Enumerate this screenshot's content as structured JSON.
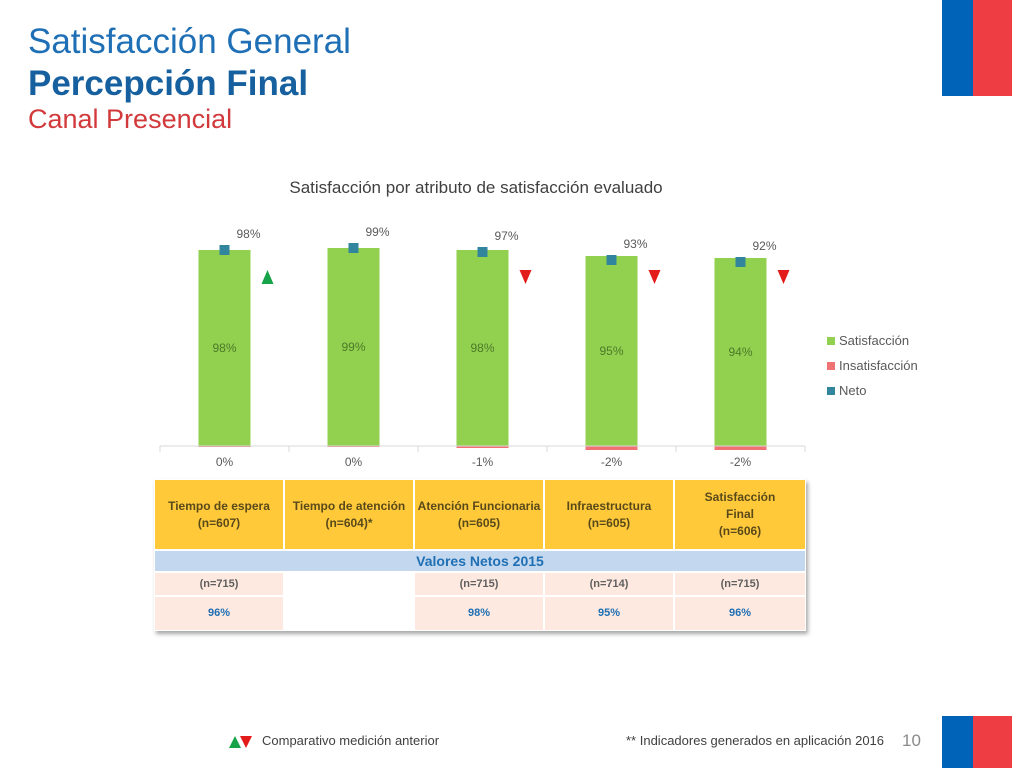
{
  "header": {
    "title": "Satisfacción General",
    "subtitle": "Percepción Final",
    "channel": "Canal Presencial"
  },
  "colors": {
    "brand_blue": "#0063b8",
    "brand_red": "#ee3e44",
    "satisfaccion": "#92d050",
    "insatisfaccion": "#f07275",
    "neto": "#31859c",
    "up": "#16a34a",
    "down": "#e31b1b"
  },
  "chart_data": {
    "type": "bar",
    "title": "Satisfacción por atributo de satisfacción evaluado",
    "categories": [
      "Tiempo de espera",
      "Tiempo de atención",
      "Atención Funcionaria",
      "Infraestructura",
      "Satisfacción Final"
    ],
    "series": [
      {
        "name": "Satisfacción",
        "values": [
          98,
          99,
          98,
          95,
          94
        ],
        "labels": [
          "98%",
          "99%",
          "98%",
          "95%",
          "94%"
        ]
      },
      {
        "name": "Insatisfacción",
        "values": [
          0,
          0,
          -1,
          -2,
          -2
        ],
        "labels": [
          "0%",
          "0%",
          "-1%",
          "-2%",
          "-2%"
        ]
      },
      {
        "name": "Neto",
        "values": [
          98,
          99,
          97,
          93,
          92
        ],
        "labels": [
          "98%",
          "99%",
          "97%",
          "93%",
          "92%"
        ]
      }
    ],
    "comparison": [
      "up",
      "none",
      "down",
      "down",
      "down"
    ],
    "ylim": [
      -2,
      100
    ],
    "legend_position": "right",
    "grid": false
  },
  "table": {
    "headers": [
      "Tiempo de espera\n(n=607)",
      "Tiempo de atención\n(n=604)*",
      "Atención Funcionaria\n(n=605)",
      "Infraestructura\n(n=605)",
      "Satisfacción\nFinal\n(n=606)"
    ],
    "band": "Valores Netos 2015",
    "n_2015": [
      "(n=715)",
      "",
      "(n=715)",
      "(n=714)",
      "(n=715)"
    ],
    "values_2015": [
      "96%",
      "",
      "98%",
      "95%",
      "96%"
    ]
  },
  "footer": {
    "comparison_note": "Comparativo medición anterior",
    "indicator_note": "** Indicadores generados en aplicación 2016",
    "page_number": "10"
  }
}
